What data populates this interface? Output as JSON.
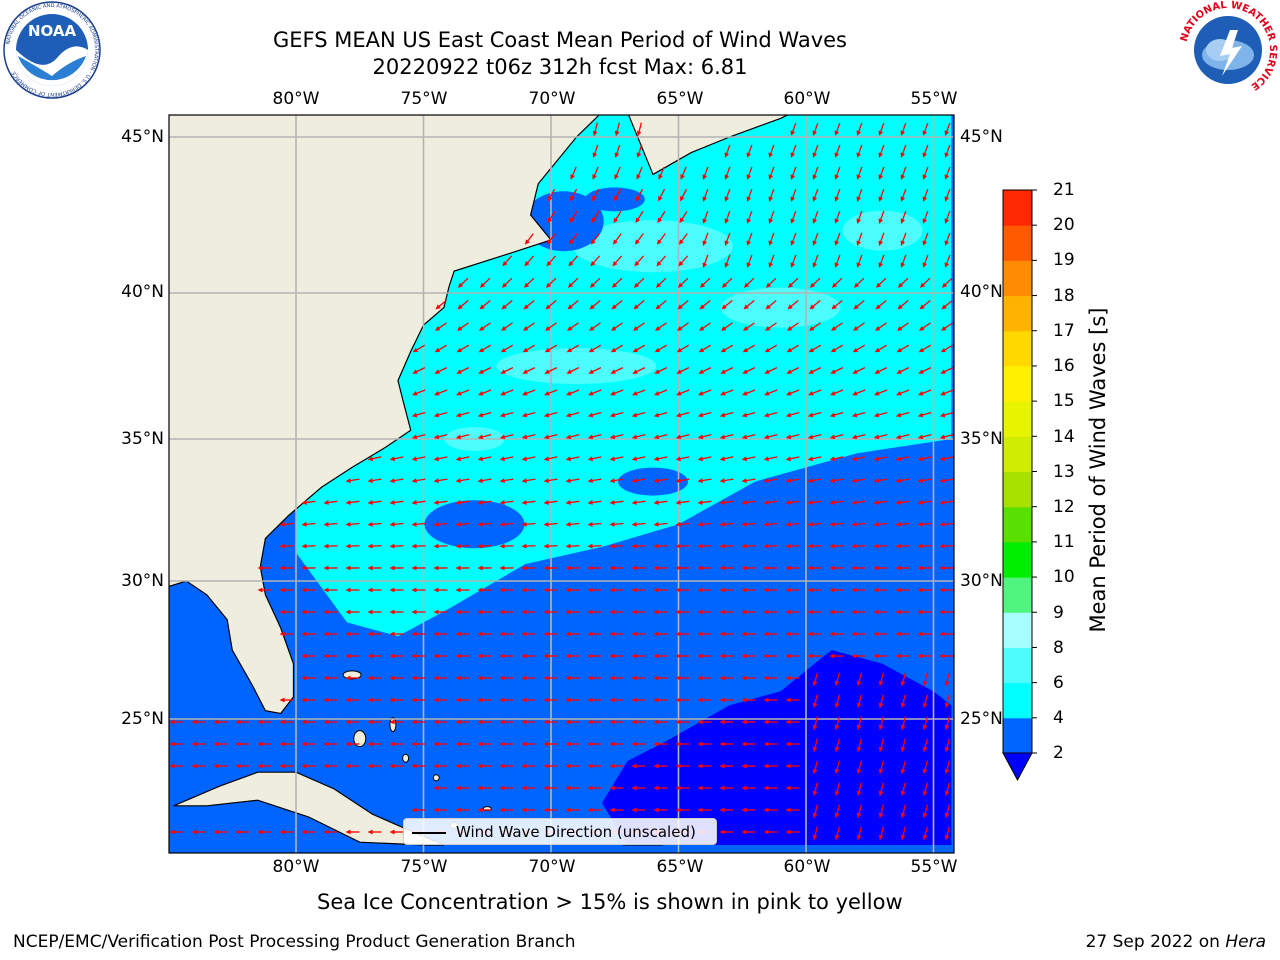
{
  "title": {
    "line1": "GEFS MEAN US East Coast Mean Period of Wind Waves",
    "line2": "20220922 t06z 312h fcst   Max: 6.81"
  },
  "map": {
    "lon_ticks": [
      "80°W",
      "75°W",
      "70°W",
      "65°W",
      "60°W",
      "55°W"
    ],
    "lat_ticks": [
      "45°N",
      "40°N",
      "35°N",
      "30°N",
      "25°N"
    ],
    "extent": {
      "lon_min": -85,
      "lon_max": -54.3,
      "lat_min": 20.5,
      "lat_max": 45.8
    },
    "colors": {
      "land": "#efedde",
      "grid": "#b4b4b4",
      "coast": "#000000",
      "arrow": "#ff0000"
    },
    "legend_label": "Wind Wave Direction (unscaled)"
  },
  "colorbar": {
    "title": "Mean Period of Wind Waves [s]",
    "ticks": [
      "2",
      "4",
      "6",
      "8",
      "9",
      "10",
      "11",
      "12",
      "13",
      "14",
      "15",
      "16",
      "17",
      "18",
      "19",
      "20",
      "21"
    ],
    "colors": [
      "#0064ff",
      "#00ffff",
      "#4dfdfd",
      "#a6fefe",
      "#4ff57e",
      "#00ee00",
      "#5ae000",
      "#a8e000",
      "#cfed00",
      "#e6f400",
      "#fff000",
      "#ffd800",
      "#ffb200",
      "#ff8c00",
      "#ff5a00",
      "#ff2800",
      "#ff0000"
    ],
    "under_color": "#0000ff"
  },
  "note": "Sea Ice Concentration > 15% is shown in pink to yellow",
  "footer": {
    "left": "NCEP/EMC/Verification Post Processing Product Generation Branch",
    "right_date": "27 Sep 2022 on",
    "right_machine": "Hera"
  },
  "logos": {
    "left": {
      "icon": "noaa-logo",
      "text": "NOAA",
      "ring": "NATIONAL OCEANIC AND ATMOSPHERIC ADMINISTRATION · U.S. DEPARTMENT OF COMMERCE"
    },
    "right": {
      "icon": "nws-logo",
      "ring": "NATIONAL WEATHER SERVICE"
    }
  }
}
